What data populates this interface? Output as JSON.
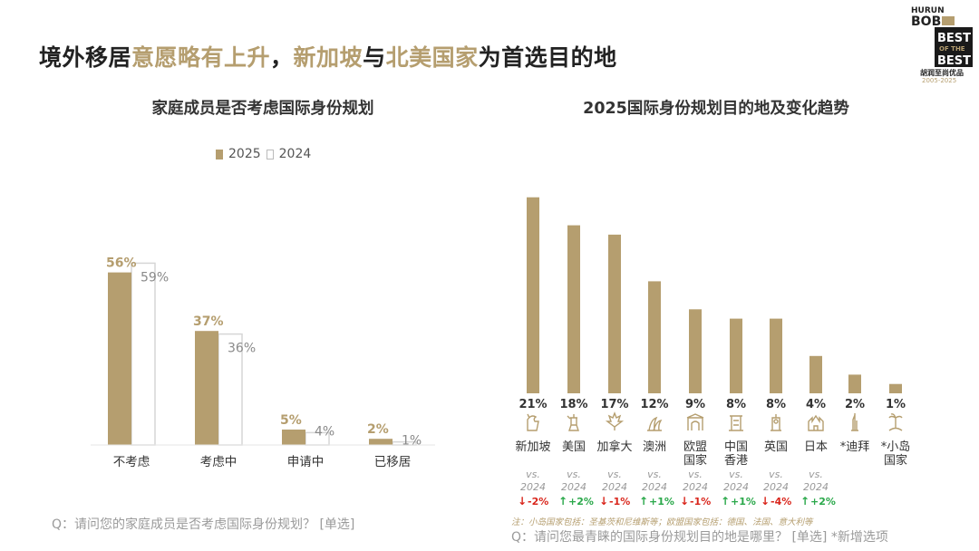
{
  "slide": {
    "title_parts": [
      {
        "text": "境外移居",
        "hl": false
      },
      {
        "text": "意愿略有上升",
        "hl": true
      },
      {
        "text": "，",
        "hl": false
      },
      {
        "text": "新加坡",
        "hl": true
      },
      {
        "text": "与",
        "hl": false
      },
      {
        "text": "北美国家",
        "hl": true
      },
      {
        "text": "为首选目的地",
        "hl": false
      }
    ],
    "logo": {
      "line1": "HURUN",
      "line2": "BOB",
      "line3": "BEST",
      "line4": "OF THE",
      "line5": "BEST",
      "line6": "胡润至尚优品",
      "line7": "2005-2025"
    },
    "colors": {
      "accent": "#B59E6F",
      "prev": "#ffffff",
      "up": "#2aa84a",
      "down": "#d9261c"
    }
  },
  "left_chart": {
    "title": "家庭成员是否考虑国际身份规划",
    "legend": [
      "2025",
      "2024"
    ],
    "question": "Q：请问您的家庭成员是否考虑国际身份规划？ [单选]"
  },
  "right_chart": {
    "title": "2025国际身份规划目的地及变化趋势",
    "vs_line1": "vs.",
    "vs_line2": "2024",
    "note": "注：小岛国家包括：圣基茨和尼维斯等；欧盟国家包括：德国、法国、意大利等",
    "question": "Q：请问您最青睐的国际身份规划目的地是哪里？ [单选] *新增选项"
  },
  "chart_data": [
    {
      "type": "bar",
      "title": "家庭成员是否考虑国际身份规划",
      "categories": [
        "不考虑",
        "考虑中",
        "申请中",
        "已移居"
      ],
      "series": [
        {
          "name": "2025",
          "values": [
            56,
            37,
            5,
            2
          ],
          "labels": [
            "56%",
            "37%",
            "5%",
            "2%"
          ]
        },
        {
          "name": "2024",
          "values": [
            59,
            36,
            4,
            1
          ],
          "labels": [
            "59%",
            "36%",
            "4%",
            "1%"
          ]
        }
      ],
      "legend": "top",
      "grid": false
    },
    {
      "type": "bar",
      "title": "2025国际身份规划目的地及变化趋势",
      "categories": [
        "新加坡",
        "美国",
        "加拿大",
        "澳洲",
        "欧盟\n国家",
        "中国\n香港",
        "英国",
        "日本",
        "*迪拜",
        "*小岛\n国家"
      ],
      "values": [
        21,
        18,
        17,
        12,
        9,
        8,
        8,
        4,
        2,
        1
      ],
      "labels": [
        "21%",
        "18%",
        "17%",
        "12%",
        "9%",
        "8%",
        "8%",
        "4%",
        "2%",
        "1%"
      ],
      "changes": [
        "-2%",
        "+2%",
        "-1%",
        "+1%",
        "-1%",
        "+1%",
        "-4%",
        "+2%",
        "",
        ""
      ],
      "change_dirs": [
        "down",
        "up",
        "down",
        "up",
        "down",
        "up",
        "down",
        "up",
        "",
        ""
      ],
      "icons": [
        "merlion-icon",
        "liberty-icon",
        "maple-leaf-icon",
        "opera-house-icon",
        "arch-icon",
        "pagoda-icon",
        "big-ben-icon",
        "castle-icon",
        "burj-icon",
        "palm-island-icon"
      ],
      "grid": false
    }
  ]
}
